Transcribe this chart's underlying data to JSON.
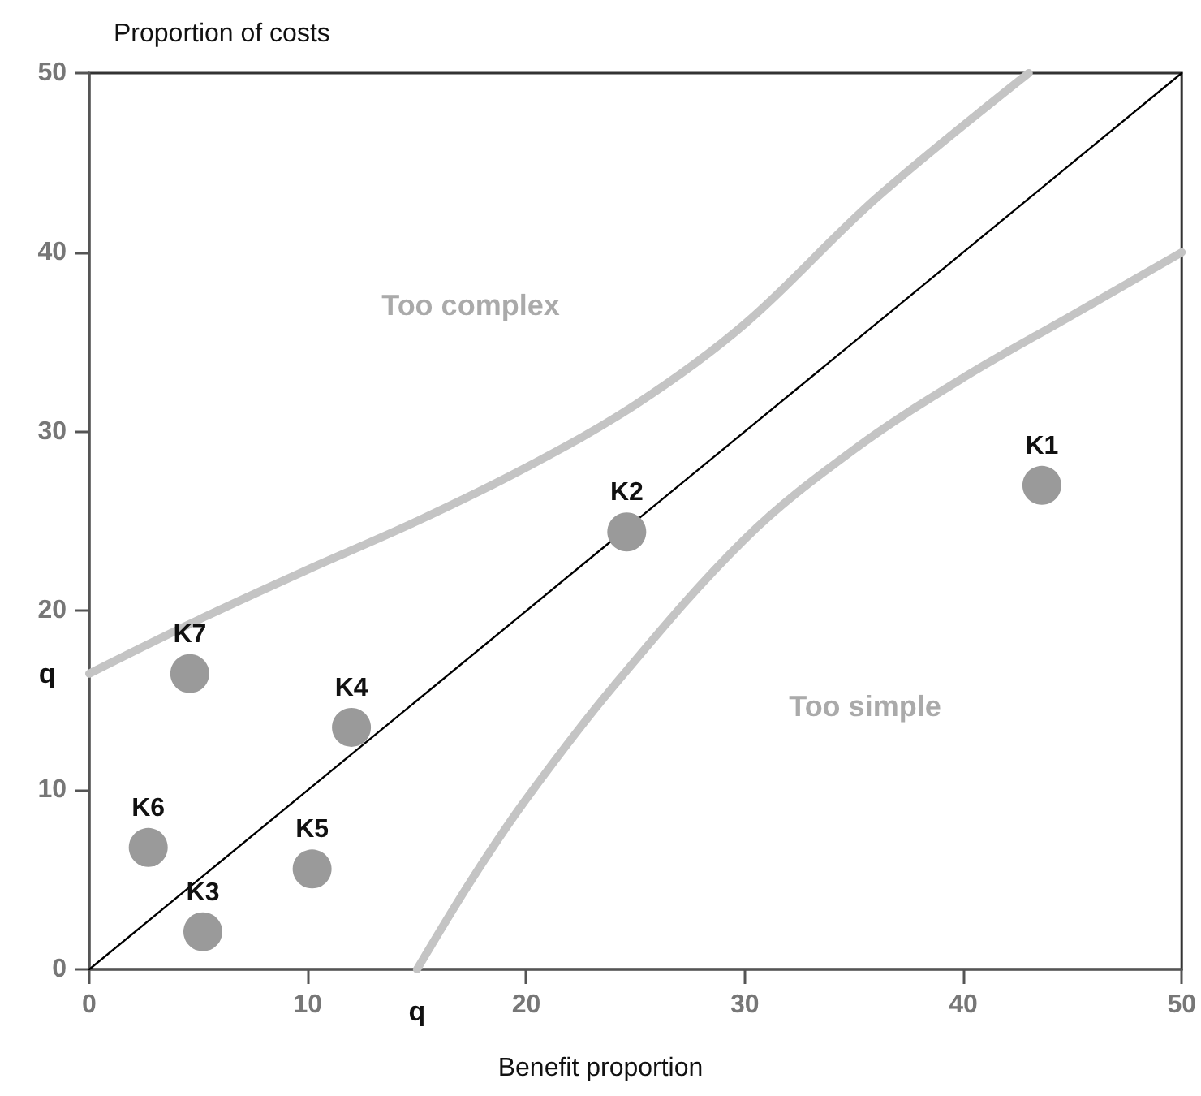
{
  "chart_data": {
    "type": "scatter",
    "xlabel": "Benefit proportion",
    "ylabel": "Proportion of costs",
    "xlim": [
      0,
      50
    ],
    "ylim": [
      0,
      50
    ],
    "xticks": [
      0,
      10,
      20,
      30,
      40,
      50
    ],
    "yticks": [
      0,
      10,
      20,
      30,
      40,
      50
    ],
    "grid": false,
    "legend": false,
    "annotations": [
      "Too complex",
      "Too simple",
      {
        "text": "q",
        "x": 0,
        "y": 16.5
      },
      {
        "text": "q",
        "x": 15,
        "y": 0
      }
    ],
    "series": [
      {
        "type": "line",
        "color": "#000000",
        "marker": "none",
        "x": [
          0,
          50
        ],
        "values": [
          0,
          50
        ]
      },
      {
        "type": "line",
        "color": "#c4c4c4",
        "marker": "none",
        "x": [
          0,
          5,
          10,
          15,
          20,
          25,
          30,
          36,
          43
        ],
        "values": [
          16.5,
          19.5,
          22.3,
          25,
          28,
          31.5,
          36,
          43,
          50
        ]
      },
      {
        "type": "line",
        "color": "#c4c4c4",
        "marker": "none",
        "x": [
          15,
          17.5,
          20,
          24,
          30,
          35,
          40,
          45,
          50
        ],
        "values": [
          0,
          5,
          9.5,
          15.8,
          24,
          29,
          33,
          36.5,
          40
        ]
      },
      {
        "name": "K1",
        "color": "#9a9a9a",
        "marker": "circle",
        "x": [
          43.6
        ],
        "values": [
          27
        ]
      },
      {
        "name": "K2",
        "color": "#9a9a9a",
        "marker": "circle",
        "x": [
          24.6
        ],
        "values": [
          24.4
        ]
      },
      {
        "name": "K3",
        "color": "#9a9a9a",
        "marker": "circle",
        "x": [
          5.2
        ],
        "values": [
          2.1
        ]
      },
      {
        "name": "K4",
        "color": "#9a9a9a",
        "marker": "circle",
        "x": [
          12
        ],
        "values": [
          13.5
        ]
      },
      {
        "name": "K5",
        "color": "#9a9a9a",
        "marker": "circle",
        "x": [
          10.2
        ],
        "values": [
          5.6
        ]
      },
      {
        "name": "K6",
        "color": "#9a9a9a",
        "marker": "circle",
        "x": [
          2.7
        ],
        "values": [
          6.8
        ]
      },
      {
        "name": "K7",
        "color": "#9a9a9a",
        "marker": "circle",
        "x": [
          4.6
        ],
        "values": [
          16.5
        ]
      }
    ]
  }
}
